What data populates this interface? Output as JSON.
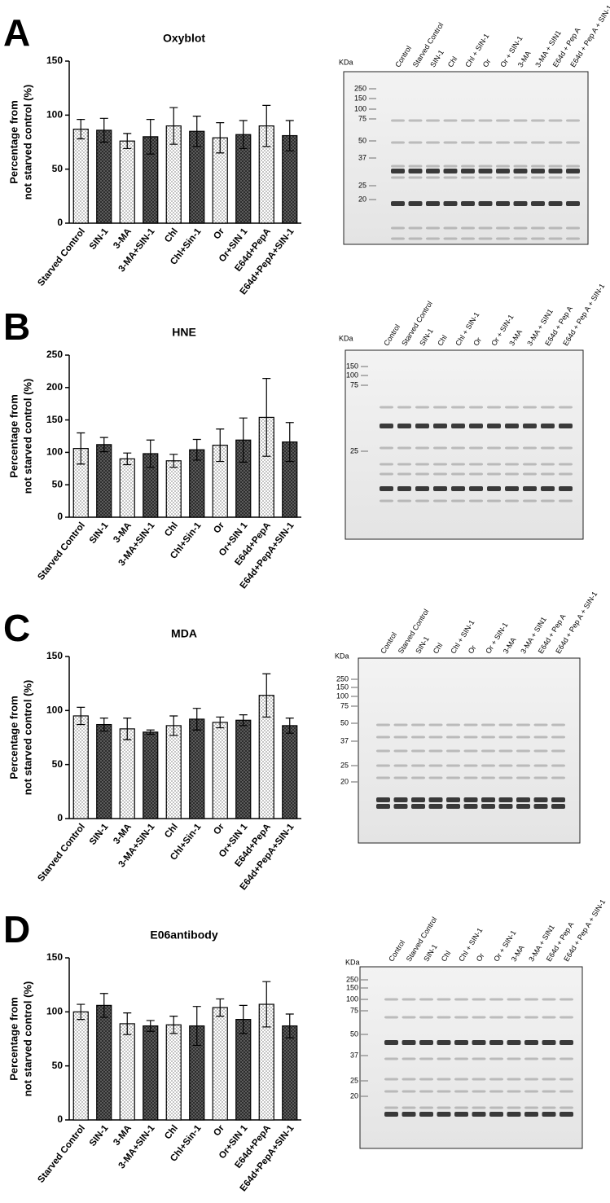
{
  "chart_data": [
    {
      "type": "bar",
      "panel": "A",
      "title": "Oxyblot",
      "ylabel": [
        "Percentage from",
        "not starved control (%)"
      ],
      "categories": [
        "Starved Control",
        "SIN-1",
        "3-MA",
        "3-MA+SIN-1",
        "Chl",
        "Chl+Sin-1",
        "Or",
        "Or+SIN 1",
        "E64d+PepA",
        "E64d+PepA+SIN-1"
      ],
      "values": [
        87,
        86,
        76,
        80,
        90,
        85,
        79,
        82,
        90,
        81
      ],
      "errors": [
        9,
        11,
        7,
        16,
        17,
        14,
        14,
        13,
        19,
        14
      ],
      "ylim": [
        0,
        150
      ],
      "yticks": [
        0,
        50,
        100,
        150
      ]
    },
    {
      "type": "bar",
      "panel": "B",
      "title": "HNE",
      "ylabel": [
        "Percentage from",
        "not starved control (%)"
      ],
      "categories": [
        "Starved Control",
        "SIN-1",
        "3-MA",
        "3-MA+SIN-1",
        "Chl",
        "Chl+Sin-1",
        "Or",
        "Or+SIN 1",
        "E64d+PepA",
        "E64d+PepA+SIN-1"
      ],
      "values": [
        106,
        112,
        90,
        98,
        87,
        104,
        111,
        119,
        154,
        116
      ],
      "errors": [
        24,
        11,
        9,
        21,
        10,
        16,
        25,
        34,
        60,
        30
      ],
      "ylim": [
        0,
        250
      ],
      "yticks": [
        0,
        50,
        100,
        150,
        200,
        250
      ]
    },
    {
      "type": "bar",
      "panel": "C",
      "title": "MDA",
      "ylabel": [
        "Percentage from",
        "not starved control (%)"
      ],
      "categories": [
        "Starved Control",
        "SIN-1",
        "3-MA",
        "3-MA+SIN-1",
        "Chl",
        "Chl+Sin-1",
        "Or",
        "Or+SIN 1",
        "E64d+PepA",
        "E64d+PepA+SIN-1"
      ],
      "values": [
        95,
        87,
        83,
        80,
        86,
        92,
        89,
        91,
        114,
        86
      ],
      "errors": [
        8,
        6,
        10,
        2,
        9,
        10,
        5,
        5,
        20,
        7
      ],
      "ylim": [
        0,
        150
      ],
      "yticks": [
        0,
        50,
        100,
        150
      ]
    },
    {
      "type": "bar",
      "panel": "D",
      "title": "E06antibody",
      "ylabel": [
        "Percentage from",
        "not starved control (%)"
      ],
      "categories": [
        "Starved Control",
        "SIN-1",
        "3-MA",
        "3-MA+SIN-1",
        "Chl",
        "Chl+Sin-1",
        "Or",
        "Or+SIN 1",
        "E64d+PepA",
        "E64d+PepA+SIN-1"
      ],
      "values": [
        100,
        106,
        89,
        87,
        88,
        87,
        104,
        93,
        107,
        87
      ],
      "errors": [
        7,
        11,
        10,
        5,
        8,
        18,
        8,
        13,
        21,
        11
      ],
      "ylim": [
        0,
        150
      ],
      "yticks": [
        0,
        50,
        100,
        150
      ]
    }
  ],
  "blots": [
    {
      "kda_label": "KDa",
      "lanes": [
        "Control",
        "Starved Control",
        "SIN-1",
        "Chl",
        "Chl + SIN-1",
        "Or",
        "Or + SIN-1",
        "3-MA",
        "3-MA + SIN1",
        "E64d + Pep A",
        "E64d + Pep A + SIN-1"
      ],
      "markers": [
        250,
        150,
        100,
        75,
        50,
        37,
        25,
        20
      ]
    },
    {
      "kda_label": "KDa",
      "lanes": [
        "Control",
        "Starved Control",
        "SIN-1",
        "Chl",
        "Chl + SIN-1",
        "Or",
        "Or + SIN-1",
        "3-MA",
        "3-MA + SIN1",
        "E64d + Pep A",
        "E64d + Pep A + SIN-1"
      ],
      "markers": [
        150,
        100,
        75,
        25
      ]
    },
    {
      "kda_label": "KDa",
      "lanes": [
        "Control",
        "Starved Control",
        "SIN-1",
        "Chl",
        "Chl + SIN-1",
        "Or",
        "Or + SIN-1",
        "3-MA",
        "3-MA + SIN1",
        "E64d + Pep A",
        "E64d + Pep A + SIN-1"
      ],
      "markers": [
        250,
        150,
        100,
        75,
        50,
        37,
        25,
        20
      ]
    },
    {
      "kda_label": "KDa",
      "lanes": [
        "Control",
        "Starved Control",
        "SIN-1",
        "Chl",
        "Chl + SIN-1",
        "Or",
        "Or + SIN-1",
        "3-MA",
        "3-MA + SIN1",
        "E64d + Pep A",
        "E64d + Pep A + SIN-1"
      ],
      "markers": [
        250,
        150,
        100,
        75,
        50,
        37,
        25,
        20
      ]
    }
  ]
}
